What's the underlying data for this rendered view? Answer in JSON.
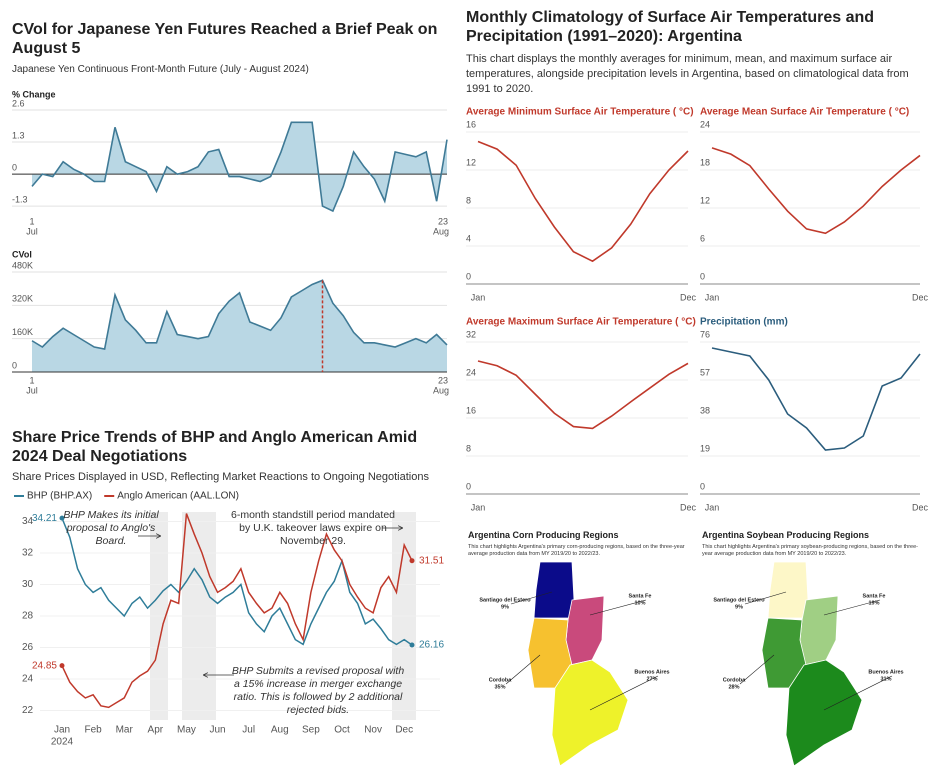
{
  "chart_data": [
    {
      "type": "area",
      "title": "CVol for Japanese Yen Futures Reached a Brief Peak on August 5",
      "subtitle": "Japanese Yen Continuous Front-Month Future (July - August 2024)",
      "color": "#3f7a96",
      "fill": "#b9d7e4",
      "panels": [
        {
          "label": "% Change",
          "categories": [
            "1",
            null,
            null,
            null,
            null,
            null,
            null,
            null,
            null,
            null,
            null,
            null,
            null,
            null,
            null,
            null,
            null,
            null,
            null,
            null,
            null,
            null,
            null,
            null,
            null,
            null,
            null,
            null,
            null,
            null,
            null,
            null,
            null,
            null,
            null,
            null,
            null,
            null,
            null,
            null,
            "23"
          ],
          "x_month_labels": [
            "Jul",
            "Aug"
          ],
          "values": [
            -0.5,
            0,
            -0.1,
            0.5,
            0.2,
            0,
            -0.3,
            -0.3,
            1.9,
            0.5,
            0.3,
            0.1,
            -0.7,
            0.3,
            0,
            0.1,
            0.3,
            0.9,
            1.0,
            -0.1,
            -0.1,
            -0.2,
            -0.3,
            -0.1,
            0.9,
            2.1,
            2.1,
            2.1,
            -1.3,
            -1.5,
            -0.5,
            0.9,
            0.3,
            -0.2,
            -1.1,
            0.9,
            0.8,
            0.7,
            0.9,
            -1.1,
            1.4
          ],
          "ylim": [
            -1.7,
            2.6
          ],
          "yticks": [
            2.6,
            1.3,
            0,
            -1.3
          ]
        },
        {
          "label": "CVol",
          "categories": [
            "1",
            null,
            null,
            null,
            null,
            null,
            null,
            null,
            null,
            null,
            null,
            null,
            null,
            null,
            null,
            null,
            null,
            null,
            null,
            null,
            null,
            null,
            null,
            null,
            null,
            null,
            null,
            null,
            null,
            null,
            null,
            null,
            null,
            null,
            null,
            null,
            null,
            null,
            null,
            null,
            "23"
          ],
          "x_month_labels": [
            "Jul",
            "Aug"
          ],
          "values": [
            150000,
            120000,
            170000,
            210000,
            180000,
            150000,
            120000,
            110000,
            370000,
            250000,
            200000,
            140000,
            140000,
            290000,
            180000,
            170000,
            160000,
            170000,
            280000,
            340000,
            380000,
            240000,
            220000,
            200000,
            260000,
            360000,
            390000,
            420000,
            440000,
            330000,
            270000,
            190000,
            140000,
            140000,
            130000,
            120000,
            140000,
            160000,
            140000,
            180000,
            130000
          ],
          "peak_color": "#c0392b",
          "ylim": [
            0,
            480000
          ],
          "yticks": [
            {
              "value": 480000,
              "label": "480K"
            },
            {
              "value": 320000,
              "label": "320K"
            },
            {
              "value": 160000,
              "label": "160K"
            },
            0
          ]
        }
      ]
    },
    {
      "type": "line",
      "title": "Monthly Climatology of Surface Air Temperatures and Precipitation (1991–2020): Argentina",
      "subtitle": "This chart displays the monthly averages for minimum, mean, and maximum surface air temperatures, alongside precipitation levels in Argentina, based on climatological data from 1991 to 2020.",
      "categories": [
        "Jan",
        null,
        null,
        null,
        null,
        null,
        null,
        null,
        null,
        null,
        null,
        "Dec"
      ],
      "panels": [
        {
          "title": "Average Minimum Surface Air Temperature ( °C)",
          "color": "#c0392b",
          "values": [
            15,
            14.2,
            12.5,
            9,
            6,
            3.4,
            2.4,
            3.8,
            6.3,
            9.5,
            12,
            14
          ],
          "ylim": [
            0,
            16
          ],
          "yticks": [
            0,
            4,
            8,
            12,
            16
          ]
        },
        {
          "title": "Average Mean Surface Air Temperature ( °C)",
          "color": "#c0392b",
          "values": [
            21.5,
            20.5,
            18.7,
            15,
            11.5,
            8.7,
            8,
            9.8,
            12.3,
            15.4,
            18,
            20.3
          ],
          "ylim": [
            0,
            24
          ],
          "yticks": [
            0,
            6,
            12,
            18,
            24
          ]
        },
        {
          "title": "Average Maximum Surface Air Temperature ( °C)",
          "color": "#c0392b",
          "values": [
            28,
            27,
            25,
            21,
            17,
            14.2,
            13.8,
            16.4,
            19.4,
            22.3,
            25.2,
            27.5
          ],
          "ylim": [
            0,
            32
          ],
          "yticks": [
            0,
            8,
            16,
            24,
            32
          ]
        },
        {
          "title": "Precipitation (mm)",
          "color": "#2b5d7d",
          "values": [
            73,
            71,
            69,
            57,
            40,
            33,
            22,
            23,
            29,
            54,
            58,
            70
          ],
          "ylim": [
            0,
            76
          ],
          "yticks": [
            0,
            19,
            38,
            57,
            76
          ]
        }
      ]
    },
    {
      "type": "line",
      "title": "Share Price Trends of BHP and Anglo American Amid 2024 Deal Negotiations",
      "subtitle": "Share Prices Displayed in USD, Reflecting Market Reactions to Ongoing Negotiations",
      "categories": [
        "Jan",
        null,
        null,
        null,
        "Feb",
        null,
        null,
        null,
        "Mar",
        null,
        null,
        null,
        "Apr",
        null,
        null,
        null,
        "May",
        null,
        null,
        null,
        "Jun",
        null,
        null,
        null,
        "Jul",
        null,
        null,
        null,
        "Aug",
        null,
        null,
        null,
        "Sep",
        null,
        null,
        null,
        "Oct",
        null,
        null,
        null,
        "Nov",
        null,
        null,
        null,
        "Dec",
        null
      ],
      "year": "2024",
      "series": [
        {
          "name": "BHP (BHP.AX)",
          "color": "#2f7d99",
          "values": [
            34.21,
            33,
            31,
            30,
            29.5,
            29.8,
            29,
            28.5,
            28,
            28.8,
            29.2,
            28.5,
            29,
            29.6,
            30,
            29.5,
            30.2,
            31,
            30.3,
            29.2,
            28.8,
            29.2,
            29.5,
            30,
            28.2,
            27.5,
            27,
            28,
            28.5,
            27.5,
            26.5,
            26.2,
            27.5,
            28.5,
            29.5,
            30.2,
            31.5,
            29.5,
            28.8,
            27.5,
            27.8,
            27.2,
            26.5,
            26.2,
            26.5,
            26.16
          ]
        },
        {
          "name": "Anglo American (AAL.LON)",
          "color": "#c0392b",
          "values": [
            24.85,
            23.8,
            23.2,
            22.8,
            23,
            22.3,
            22.2,
            22.5,
            22.8,
            23.8,
            24.2,
            24.5,
            25.2,
            27.5,
            29,
            28.8,
            34.5,
            33.2,
            32,
            30.5,
            29.5,
            29.8,
            30.2,
            31,
            29.5,
            28.8,
            28.2,
            28.5,
            29.5,
            28.8,
            27.5,
            26.5,
            29.5,
            31.5,
            33.2,
            32.2,
            31.5,
            30,
            29.2,
            28.5,
            28.2,
            29.8,
            30.5,
            29.5,
            32.5,
            31.51
          ]
        }
      ],
      "ylim": [
        21.4,
        34.6
      ],
      "yticks": [
        22,
        24,
        26,
        28,
        30,
        32,
        34
      ],
      "grid": true,
      "annotations": [
        "BHP Makes its initial proposal to Anglo's Board.",
        "6-month standstill period mandated by U.K. takeover laws expire on November 29.",
        "BHP Submits a revised proposal with a 15% increase in merger exchange ratio. This is followed by 2 additional rejected bids."
      ]
    },
    {
      "type": "map",
      "maps": [
        {
          "title": "Argentina Corn Producing Regions",
          "subtitle": "This chart highlights Argentina's primary corn-producing regions, based on the three-year average production data from MY 2019/20 to 2022/23.",
          "regions": [
            "Santiago del Estero",
            "Santa Fe",
            "Cordoba",
            "Buenos Aires"
          ],
          "values": [
            9,
            10,
            35,
            27
          ],
          "value_labels": [
            "9%",
            "10%",
            "35%",
            "27%"
          ],
          "colors": [
            "#0b0b8a",
            "#c94a7c",
            "#f6c12f",
            "#eef22a"
          ]
        },
        {
          "title": "Argentina Soybean Producing Regions",
          "subtitle": "This chart highlights Argentina's primary soybean-producing regions, based on the three-year average production data from MY 2019/20 to 2022/23.",
          "regions": [
            "Santiago del Estero",
            "Santa Fe",
            "Cordoba",
            "Buenos Aires"
          ],
          "values": [
            9,
            19,
            28,
            31
          ],
          "value_labels": [
            "9%",
            "19%",
            "28%",
            "31%"
          ],
          "colors": [
            "#fdf7c8",
            "#a0cf84",
            "#3f9a34",
            "#1c8a1c"
          ]
        }
      ]
    }
  ]
}
